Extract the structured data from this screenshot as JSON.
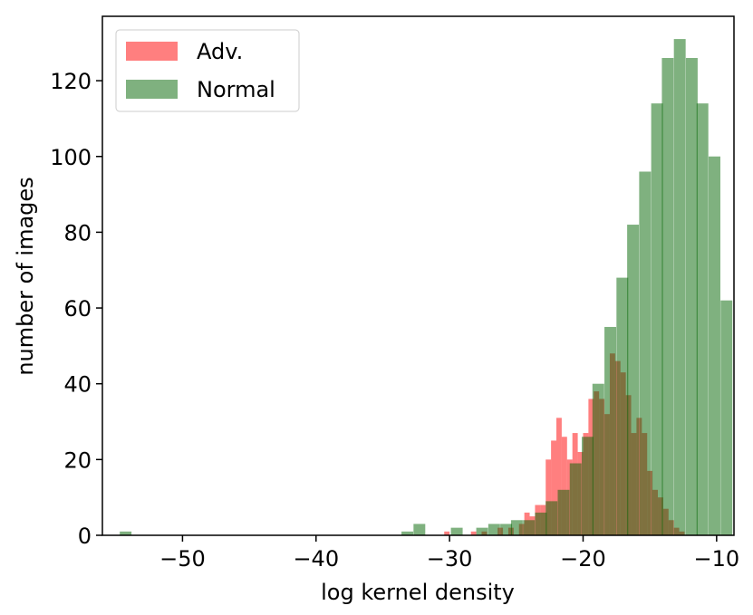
{
  "chart_data": {
    "type": "histogram",
    "xlabel": "log kernel density",
    "ylabel": "number of images",
    "xlim": [
      -56.0,
      -8.7
    ],
    "ylim": [
      0,
      137
    ],
    "xticks": [
      -50,
      -40,
      -30,
      -20,
      -10
    ],
    "xtick_labels": [
      "−50",
      "−40",
      "−30",
      "−20",
      "−10"
    ],
    "yticks": [
      0,
      20,
      40,
      60,
      80,
      100,
      120
    ],
    "ytick_labels": [
      "0",
      "20",
      "40",
      "60",
      "80",
      "100",
      "120"
    ],
    "grid": false,
    "legend_position": "top-left",
    "series": [
      {
        "name": "Adv.",
        "color": "#ff0000",
        "alpha": 0.5,
        "bin_width": 0.4,
        "bins": [
          [
            -30.4,
            1
          ],
          [
            -28.4,
            1
          ],
          [
            -27.6,
            1
          ],
          [
            -26.4,
            2
          ],
          [
            -25.6,
            2
          ],
          [
            -24.8,
            3
          ],
          [
            -24.4,
            6
          ],
          [
            -24.0,
            5
          ],
          [
            -23.6,
            8
          ],
          [
            -23.2,
            8
          ],
          [
            -22.8,
            20
          ],
          [
            -22.4,
            25
          ],
          [
            -22.0,
            31
          ],
          [
            -21.6,
            26
          ],
          [
            -21.2,
            20
          ],
          [
            -20.8,
            27
          ],
          [
            -20.4,
            22
          ],
          [
            -20.0,
            27
          ],
          [
            -19.6,
            36
          ],
          [
            -19.2,
            38
          ],
          [
            -18.8,
            36
          ],
          [
            -18.4,
            32
          ],
          [
            -18.0,
            48
          ],
          [
            -17.6,
            46
          ],
          [
            -17.2,
            43
          ],
          [
            -16.8,
            37
          ],
          [
            -16.4,
            27
          ],
          [
            -16.0,
            31
          ],
          [
            -15.6,
            27
          ],
          [
            -15.2,
            17
          ],
          [
            -14.8,
            12
          ],
          [
            -14.4,
            10
          ],
          [
            -14.0,
            7
          ],
          [
            -13.6,
            4
          ],
          [
            -13.2,
            2
          ],
          [
            -12.8,
            1
          ]
        ]
      },
      {
        "name": "Normal",
        "color": "#006400",
        "alpha": 0.5,
        "bin_width": 0.88,
        "bins": [
          [
            -54.7,
            1
          ],
          [
            -33.6,
            1
          ],
          [
            -32.7,
            3
          ],
          [
            -29.9,
            2
          ],
          [
            -28.0,
            2
          ],
          [
            -27.1,
            3
          ],
          [
            -26.2,
            3
          ],
          [
            -25.4,
            4
          ],
          [
            -24.5,
            4
          ],
          [
            -23.6,
            6
          ],
          [
            -22.8,
            9
          ],
          [
            -21.9,
            12
          ],
          [
            -21.0,
            19
          ],
          [
            -20.1,
            26
          ],
          [
            -19.3,
            40
          ],
          [
            -18.4,
            55
          ],
          [
            -17.5,
            68
          ],
          [
            -16.7,
            82
          ],
          [
            -15.8,
            96
          ],
          [
            -14.9,
            114
          ],
          [
            -14.1,
            126
          ],
          [
            -13.2,
            131
          ],
          [
            -12.3,
            126
          ],
          [
            -11.5,
            114
          ],
          [
            -10.6,
            100
          ],
          [
            -9.7,
            62
          ]
        ]
      }
    ]
  }
}
